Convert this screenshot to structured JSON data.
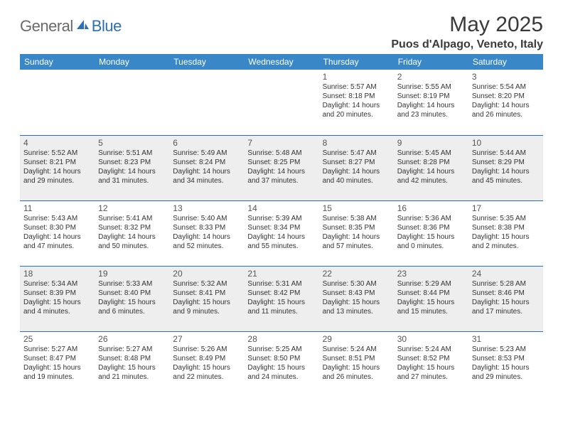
{
  "logo": {
    "text1": "General",
    "text2": "Blue"
  },
  "title": "May 2025",
  "location": "Puos d'Alpago, Veneto, Italy",
  "colors": {
    "header_bg": "#3a87c8",
    "header_fg": "#ffffff",
    "border": "#2c6fb3",
    "shade_bg": "#eeeeee",
    "text": "#333333",
    "logo_gray": "#6a6a6a",
    "logo_blue": "#2c6fb3"
  },
  "weekdays": [
    "Sunday",
    "Monday",
    "Tuesday",
    "Wednesday",
    "Thursday",
    "Friday",
    "Saturday"
  ],
  "weeks": [
    {
      "shaded": false,
      "days": [
        null,
        null,
        null,
        null,
        {
          "n": "1",
          "sr": "5:57 AM",
          "ss": "8:18 PM",
          "dl": "14 hours and 20 minutes."
        },
        {
          "n": "2",
          "sr": "5:55 AM",
          "ss": "8:19 PM",
          "dl": "14 hours and 23 minutes."
        },
        {
          "n": "3",
          "sr": "5:54 AM",
          "ss": "8:20 PM",
          "dl": "14 hours and 26 minutes."
        }
      ]
    },
    {
      "shaded": true,
      "days": [
        {
          "n": "4",
          "sr": "5:52 AM",
          "ss": "8:21 PM",
          "dl": "14 hours and 29 minutes."
        },
        {
          "n": "5",
          "sr": "5:51 AM",
          "ss": "8:23 PM",
          "dl": "14 hours and 31 minutes."
        },
        {
          "n": "6",
          "sr": "5:49 AM",
          "ss": "8:24 PM",
          "dl": "14 hours and 34 minutes."
        },
        {
          "n": "7",
          "sr": "5:48 AM",
          "ss": "8:25 PM",
          "dl": "14 hours and 37 minutes."
        },
        {
          "n": "8",
          "sr": "5:47 AM",
          "ss": "8:27 PM",
          "dl": "14 hours and 40 minutes."
        },
        {
          "n": "9",
          "sr": "5:45 AM",
          "ss": "8:28 PM",
          "dl": "14 hours and 42 minutes."
        },
        {
          "n": "10",
          "sr": "5:44 AM",
          "ss": "8:29 PM",
          "dl": "14 hours and 45 minutes."
        }
      ]
    },
    {
      "shaded": false,
      "days": [
        {
          "n": "11",
          "sr": "5:43 AM",
          "ss": "8:30 PM",
          "dl": "14 hours and 47 minutes."
        },
        {
          "n": "12",
          "sr": "5:41 AM",
          "ss": "8:32 PM",
          "dl": "14 hours and 50 minutes."
        },
        {
          "n": "13",
          "sr": "5:40 AM",
          "ss": "8:33 PM",
          "dl": "14 hours and 52 minutes."
        },
        {
          "n": "14",
          "sr": "5:39 AM",
          "ss": "8:34 PM",
          "dl": "14 hours and 55 minutes."
        },
        {
          "n": "15",
          "sr": "5:38 AM",
          "ss": "8:35 PM",
          "dl": "14 hours and 57 minutes."
        },
        {
          "n": "16",
          "sr": "5:36 AM",
          "ss": "8:36 PM",
          "dl": "15 hours and 0 minutes."
        },
        {
          "n": "17",
          "sr": "5:35 AM",
          "ss": "8:38 PM",
          "dl": "15 hours and 2 minutes."
        }
      ]
    },
    {
      "shaded": true,
      "days": [
        {
          "n": "18",
          "sr": "5:34 AM",
          "ss": "8:39 PM",
          "dl": "15 hours and 4 minutes."
        },
        {
          "n": "19",
          "sr": "5:33 AM",
          "ss": "8:40 PM",
          "dl": "15 hours and 6 minutes."
        },
        {
          "n": "20",
          "sr": "5:32 AM",
          "ss": "8:41 PM",
          "dl": "15 hours and 9 minutes."
        },
        {
          "n": "21",
          "sr": "5:31 AM",
          "ss": "8:42 PM",
          "dl": "15 hours and 11 minutes."
        },
        {
          "n": "22",
          "sr": "5:30 AM",
          "ss": "8:43 PM",
          "dl": "15 hours and 13 minutes."
        },
        {
          "n": "23",
          "sr": "5:29 AM",
          "ss": "8:44 PM",
          "dl": "15 hours and 15 minutes."
        },
        {
          "n": "24",
          "sr": "5:28 AM",
          "ss": "8:46 PM",
          "dl": "15 hours and 17 minutes."
        }
      ]
    },
    {
      "shaded": false,
      "days": [
        {
          "n": "25",
          "sr": "5:27 AM",
          "ss": "8:47 PM",
          "dl": "15 hours and 19 minutes."
        },
        {
          "n": "26",
          "sr": "5:27 AM",
          "ss": "8:48 PM",
          "dl": "15 hours and 21 minutes."
        },
        {
          "n": "27",
          "sr": "5:26 AM",
          "ss": "8:49 PM",
          "dl": "15 hours and 22 minutes."
        },
        {
          "n": "28",
          "sr": "5:25 AM",
          "ss": "8:50 PM",
          "dl": "15 hours and 24 minutes."
        },
        {
          "n": "29",
          "sr": "5:24 AM",
          "ss": "8:51 PM",
          "dl": "15 hours and 26 minutes."
        },
        {
          "n": "30",
          "sr": "5:24 AM",
          "ss": "8:52 PM",
          "dl": "15 hours and 27 minutes."
        },
        {
          "n": "31",
          "sr": "5:23 AM",
          "ss": "8:53 PM",
          "dl": "15 hours and 29 minutes."
        }
      ]
    }
  ],
  "labels": {
    "sunrise": "Sunrise: ",
    "sunset": "Sunset: ",
    "daylight": "Daylight: "
  }
}
